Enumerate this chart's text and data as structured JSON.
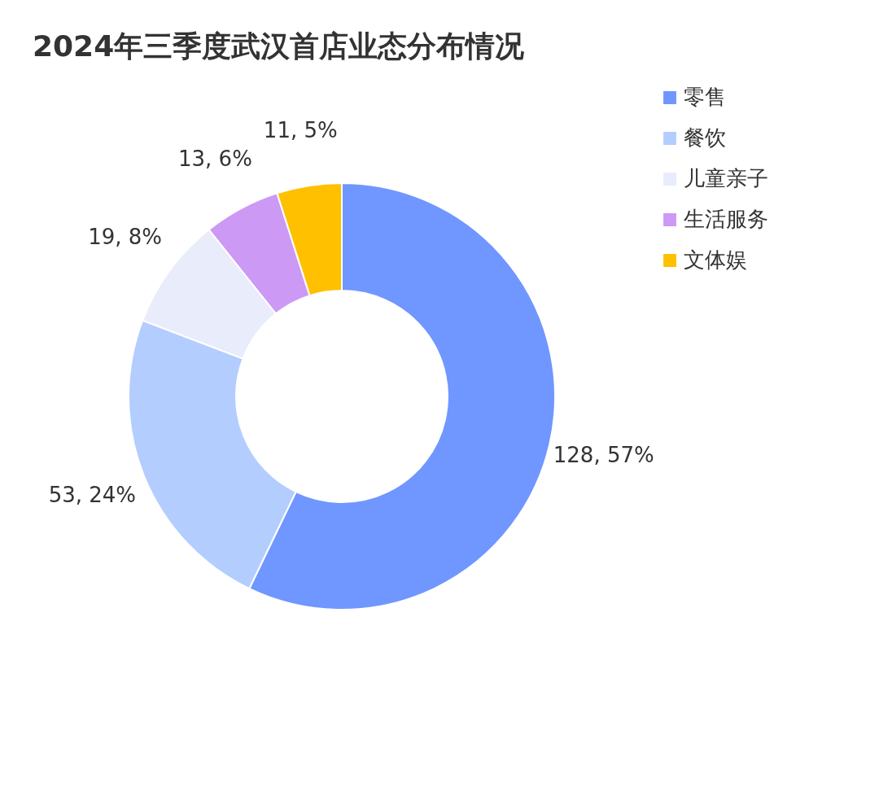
{
  "chart_data": {
    "type": "donut",
    "title": "2024年三季度武汉首店业态分布情况",
    "categories": [
      "零售",
      "餐饮",
      "儿童亲子",
      "生活服务",
      "文体娱"
    ],
    "values": [
      128,
      53,
      19,
      13,
      11
    ],
    "colors": [
      "#7096ff",
      "#b3cdff",
      "#e8ecfb",
      "#cc99f5",
      "#ffc000"
    ],
    "value_labels": [
      "128, 57%",
      "53, 24%",
      "19, 8%",
      "13, 6%",
      "11, 5%"
    ],
    "legend": "right"
  }
}
